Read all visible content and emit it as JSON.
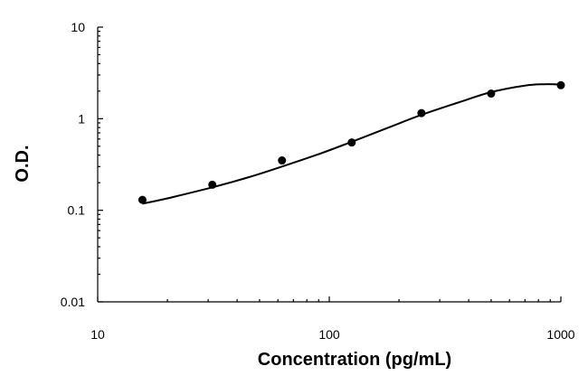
{
  "chart_data": {
    "type": "scatter",
    "title": "",
    "xlabel": "Concentration (pg/mL)",
    "ylabel": "O.D.",
    "x_scale": "log",
    "y_scale": "log",
    "xlim": [
      10,
      1000
    ],
    "ylim": [
      0.01,
      10
    ],
    "x_ticks": [
      {
        "value": 10,
        "label": "10"
      },
      {
        "value": 100,
        "label": "100"
      },
      {
        "value": 1000,
        "label": "1000"
      }
    ],
    "y_ticks": [
      {
        "value": 10,
        "label": "10"
      },
      {
        "value": 1,
        "label": "1"
      },
      {
        "value": 0.1,
        "label": "0.1"
      },
      {
        "value": 0.01,
        "label": "0.01"
      }
    ],
    "grid": false,
    "legend": "none",
    "series": [
      {
        "kind": "points",
        "x": [
          15.6,
          31.25,
          62.5,
          125,
          250,
          500,
          1000
        ],
        "y": [
          0.13,
          0.19,
          0.35,
          0.55,
          1.15,
          1.88,
          2.32
        ]
      },
      {
        "kind": "fit-curve",
        "x": [
          15.6,
          20,
          31.25,
          45,
          62.5,
          90,
          125,
          180,
          250,
          360,
          500,
          700,
          850,
          1000
        ],
        "y": [
          0.118,
          0.135,
          0.178,
          0.23,
          0.3,
          0.41,
          0.56,
          0.8,
          1.1,
          1.5,
          1.95,
          2.3,
          2.38,
          2.36
        ]
      }
    ]
  }
}
